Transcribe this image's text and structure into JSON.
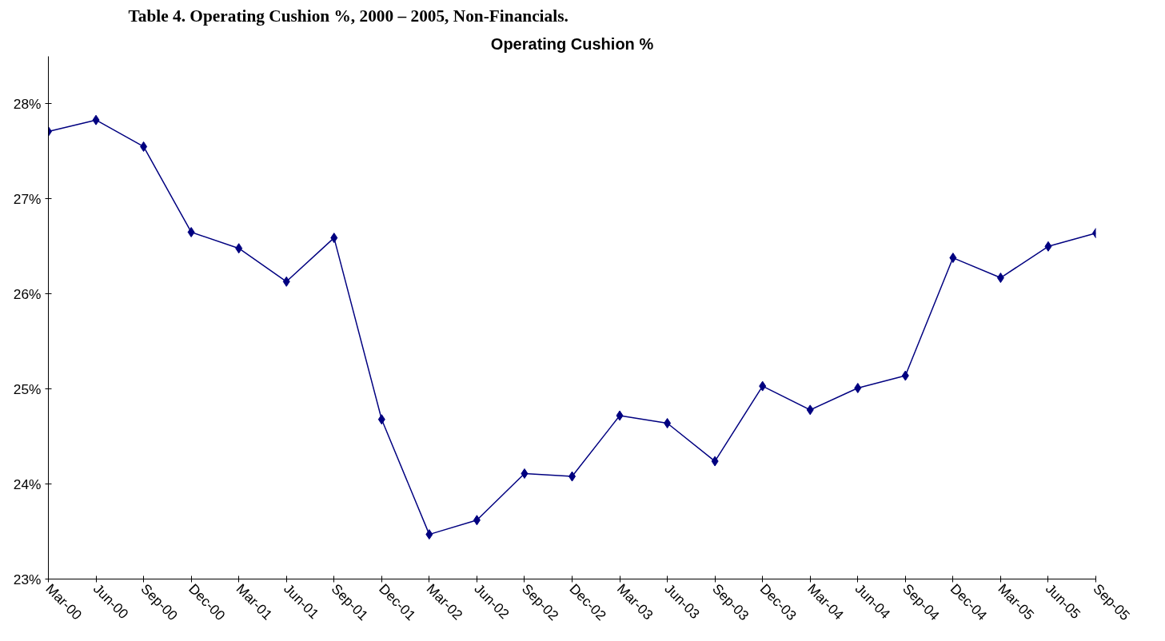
{
  "chart_data": {
    "type": "line",
    "title": "Table 4.  Operating Cushion %, 2000 – 2005, Non-Financials.",
    "subtitle": "Operating Cushion %",
    "categories": [
      "Mar-00",
      "Jun-00",
      "Sep-00",
      "Dec-00",
      "Mar-01",
      "Jun-01",
      "Sep-01",
      "Dec-01",
      "Mar-02",
      "Jun-02",
      "Sep-02",
      "Dec-02",
      "Mar-03",
      "Jun-03",
      "Sep-03",
      "Dec-03",
      "Mar-04",
      "Jun-04",
      "Sep-04",
      "Dec-04",
      "Mar-05",
      "Jun-05",
      "Sep-05"
    ],
    "series": [
      {
        "color": "#000080",
        "values": [
          27.71,
          27.83,
          27.55,
          26.65,
          26.48,
          26.13,
          26.59,
          24.68,
          23.47,
          23.62,
          24.11,
          24.08,
          24.72,
          24.64,
          24.24,
          25.03,
          24.78,
          25.01,
          25.14,
          26.38,
          26.17,
          26.5,
          26.64
        ]
      }
    ],
    "ylim": [
      23,
      28.5
    ],
    "yticks": [
      {
        "value": 23,
        "label": "23%"
      },
      {
        "value": 24,
        "label": "24%"
      },
      {
        "value": 25,
        "label": "25%"
      },
      {
        "value": 26,
        "label": "26%"
      },
      {
        "value": 27,
        "label": "27%"
      },
      {
        "value": 28,
        "label": "28%"
      }
    ],
    "grid": false,
    "marker": "diamond",
    "line_style": "solid"
  }
}
